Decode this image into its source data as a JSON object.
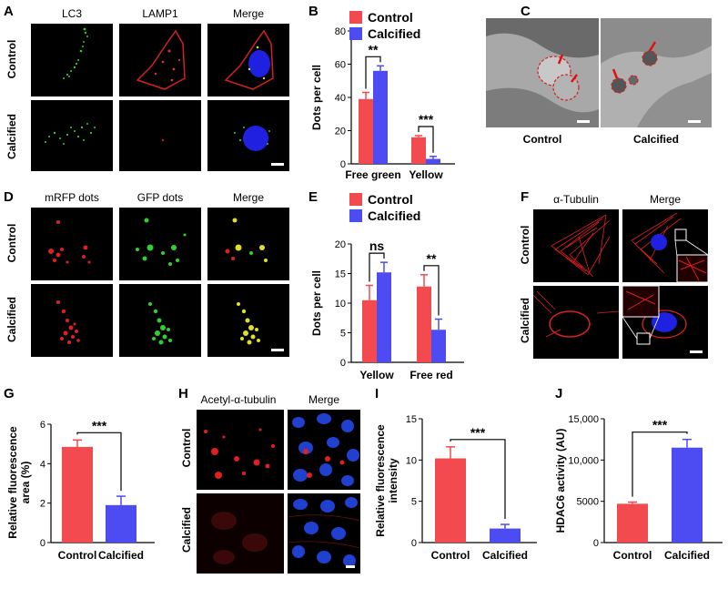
{
  "panels": {
    "A": {
      "letter": "A",
      "titles": [
        "LC3",
        "LAMP1",
        "Merge"
      ],
      "rows": [
        "Control",
        "Calcified"
      ]
    },
    "B": {
      "letter": "B"
    },
    "C": {
      "letter": "C",
      "captions": [
        "Control",
        "Calcified"
      ]
    },
    "D": {
      "letter": "D",
      "titles": [
        "mRFP dots",
        "GFP dots",
        "Merge"
      ],
      "rows": [
        "Control",
        "Calcified"
      ]
    },
    "E": {
      "letter": "E"
    },
    "F": {
      "letter": "F",
      "titles": [
        "α-Tubulin",
        "Merge"
      ],
      "rows": [
        "Control",
        "Calcified"
      ]
    },
    "G": {
      "letter": "G"
    },
    "H": {
      "letter": "H",
      "titles": [
        "Acetyl-α-tubulin",
        "Merge"
      ],
      "rows": [
        "Control",
        "Calcified"
      ]
    },
    "I": {
      "letter": "I"
    },
    "J": {
      "letter": "J"
    }
  },
  "colors": {
    "control": "#f24a4f",
    "calcified": "#4c4cf2"
  },
  "chart_data": [
    {
      "panel": "B",
      "type": "bar",
      "categories": [
        "Free green",
        "Yellow"
      ],
      "series": [
        {
          "name": "Control",
          "values": [
            39,
            16
          ],
          "errors": [
            4,
            1
          ]
        },
        {
          "name": "Calcified",
          "values": [
            56,
            3
          ],
          "errors": [
            3,
            1.5
          ]
        }
      ],
      "ylabel": "Dots per cell",
      "ylim": [
        0,
        80
      ],
      "yticks": [
        "0",
        "20",
        "40",
        "60",
        "80"
      ],
      "legend": "top",
      "significance": [
        "**",
        "***"
      ]
    },
    {
      "panel": "E",
      "type": "bar",
      "categories": [
        "Yellow",
        "Free red"
      ],
      "series": [
        {
          "name": "Control",
          "values": [
            10.5,
            12.8
          ],
          "errors": [
            2.5,
            2
          ]
        },
        {
          "name": "Calcified",
          "values": [
            15.2,
            5.5
          ],
          "errors": [
            1.7,
            1.8
          ]
        }
      ],
      "ylabel": "Dots per cell",
      "ylim": [
        0,
        20
      ],
      "yticks": [
        "0",
        "5",
        "10",
        "15",
        "20"
      ],
      "legend": "top",
      "significance": [
        "ns",
        "**"
      ]
    },
    {
      "panel": "G",
      "type": "bar",
      "categories": [
        "Control",
        "Calcified"
      ],
      "values": [
        4.85,
        1.9
      ],
      "errors": [
        0.35,
        0.45
      ],
      "ylabel": "Relative fluorescence area (%)",
      "ylim": [
        0,
        6
      ],
      "yticks": [
        "0",
        "2",
        "4",
        "6"
      ],
      "significance": "***"
    },
    {
      "panel": "I",
      "type": "bar",
      "categories": [
        "Control",
        "Calcified"
      ],
      "values": [
        10.2,
        1.7
      ],
      "errors": [
        1.4,
        0.5
      ],
      "ylabel": "Relative fluorescence intensity",
      "ylim": [
        0,
        15
      ],
      "yticks": [
        "0",
        "5",
        "10",
        "15"
      ],
      "significance": "***"
    },
    {
      "panel": "J",
      "type": "bar",
      "categories": [
        "Control",
        "Calcified"
      ],
      "values": [
        4700,
        11500
      ],
      "errors": [
        200,
        1000
      ],
      "ylabel": "HDAC6 activity (AU)",
      "ylim": [
        0,
        15000
      ],
      "yticks": [
        "0",
        "5000",
        "10,000",
        "15,000"
      ],
      "significance": "***"
    }
  ]
}
